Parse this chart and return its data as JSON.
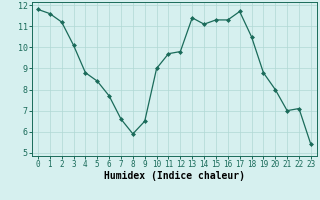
{
  "x": [
    0,
    1,
    2,
    3,
    4,
    5,
    6,
    7,
    8,
    9,
    10,
    11,
    12,
    13,
    14,
    15,
    16,
    17,
    18,
    19,
    20,
    21,
    22,
    23
  ],
  "y": [
    11.8,
    11.6,
    11.2,
    10.1,
    8.8,
    8.4,
    7.7,
    6.6,
    5.9,
    6.5,
    9.0,
    9.7,
    9.8,
    11.4,
    11.1,
    11.3,
    11.3,
    11.7,
    10.5,
    8.8,
    8.0,
    7.0,
    7.1,
    5.4
  ],
  "line_color": "#1a6b5a",
  "marker_color": "#1a6b5a",
  "bg_color": "#d6f0ef",
  "grid_color": "#b0d8d4",
  "xlabel": "Humidex (Indice chaleur)",
  "ylim": [
    5,
    12
  ],
  "xlim": [
    -0.5,
    23.5
  ],
  "yticks": [
    5,
    6,
    7,
    8,
    9,
    10,
    11,
    12
  ],
  "xticks": [
    0,
    1,
    2,
    3,
    4,
    5,
    6,
    7,
    8,
    9,
    10,
    11,
    12,
    13,
    14,
    15,
    16,
    17,
    18,
    19,
    20,
    21,
    22,
    23
  ],
  "tick_fontsize": 5.5,
  "xlabel_fontsize": 7,
  "ylabel_fontsize": 6
}
